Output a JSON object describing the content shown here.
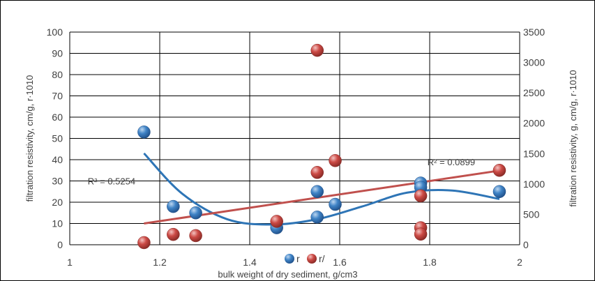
{
  "chart_data": {
    "type": "scatter",
    "xlabel": "bulk weight of dry sediment, g/cm3",
    "ylabel_left": "filtration resistivity, cm/g, r·1010",
    "ylabel_right": "filtration resistivity, g, cm/g, r·1010",
    "xlim": [
      1,
      2
    ],
    "ylim_left": [
      0,
      100
    ],
    "ylim_right": [
      0,
      3500
    ],
    "x_ticks": [
      "1",
      "1.2",
      "1.4",
      "1.6",
      "1.8",
      "2"
    ],
    "y_left_ticks": [
      "0",
      "10",
      "20",
      "30",
      "40",
      "50",
      "60",
      "70",
      "80",
      "90",
      "100"
    ],
    "y_right_ticks": [
      "0",
      "500",
      "1000",
      "1500",
      "2000",
      "2500",
      "3000",
      "3500"
    ],
    "grid": true,
    "legend_position": "bottom",
    "colors": {
      "series_r": "#2e75b6",
      "series_r_prime": "#c0504d",
      "trend_r": "#2e75b6",
      "trend_r_prime": "#c0504d"
    },
    "series": [
      {
        "name": "r",
        "axis": "left",
        "x": [
          1.165,
          1.23,
          1.28,
          1.46,
          1.55,
          1.55,
          1.59,
          1.78,
          1.78,
          1.955
        ],
        "y": [
          53,
          18,
          15,
          8,
          13,
          25,
          19,
          29,
          27,
          25
        ]
      },
      {
        "name": "r/",
        "axis": "right",
        "x": [
          1.165,
          1.23,
          1.28,
          1.46,
          1.55,
          1.55,
          1.59,
          1.78,
          1.78,
          1.78,
          1.955
        ],
        "y": [
          35,
          170,
          150,
          385,
          3200,
          1190,
          1385,
          805,
          280,
          175,
          1225
        ]
      }
    ],
    "trendlines": [
      {
        "series": "r",
        "kind": "polynomial",
        "x": [
          1.165,
          1.25,
          1.35,
          1.45,
          1.55,
          1.65,
          1.75,
          1.85,
          1.955
        ],
        "y": [
          43,
          24,
          12,
          9.5,
          12,
          18,
          24.5,
          25.5,
          21.5
        ]
      },
      {
        "series": "r/",
        "kind": "linear",
        "x": [
          1.165,
          1.955
        ],
        "y": [
          350,
          1220
        ]
      }
    ],
    "annotations": [
      {
        "text": "R² = 0.5254",
        "x": 1.04,
        "y_left": 30
      },
      {
        "text": "R² = 0.0899",
        "x": 1.795,
        "y_left": 39
      }
    ]
  }
}
